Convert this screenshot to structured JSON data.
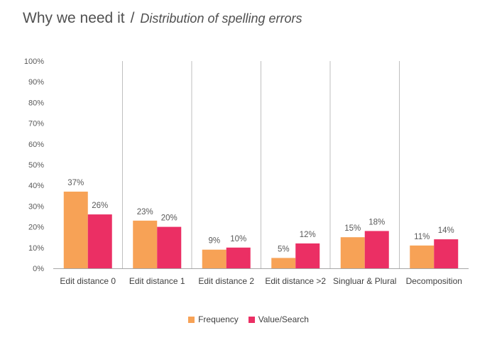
{
  "header": {
    "title": "Why we need it",
    "separator": "/",
    "subtitle": "Distribution of spelling errors"
  },
  "colors": {
    "frequency": "#F7A256",
    "value_search": "#EB2F64",
    "gridline": "#BFBFBF",
    "axis": "#A6A6A6"
  },
  "chart_data": {
    "type": "bar",
    "categories": [
      "Edit distance 0",
      "Edit distance 1",
      "Edit distance 2",
      "Edit distance >2",
      "Singluar & Plural",
      "Decomposition"
    ],
    "series": [
      {
        "name": "Frequency",
        "values": [
          37,
          23,
          9,
          5,
          15,
          11
        ],
        "labels": [
          "37%",
          "23%",
          "9%",
          "5%",
          "15%",
          "11%"
        ]
      },
      {
        "name": "Value/Search",
        "values": [
          26,
          20,
          10,
          12,
          18,
          14
        ],
        "labels": [
          "26%",
          "20%",
          "10%",
          "12%",
          "18%",
          "14%"
        ]
      }
    ],
    "ylim": [
      0,
      100
    ],
    "yticks": [
      "0%",
      "10%",
      "20%",
      "30%",
      "40%",
      "50%",
      "60%",
      "70%",
      "80%",
      "90%",
      "100%"
    ],
    "xlabel": "",
    "ylabel": "",
    "grid": "vertical-separators",
    "legend": "bottom-center"
  }
}
